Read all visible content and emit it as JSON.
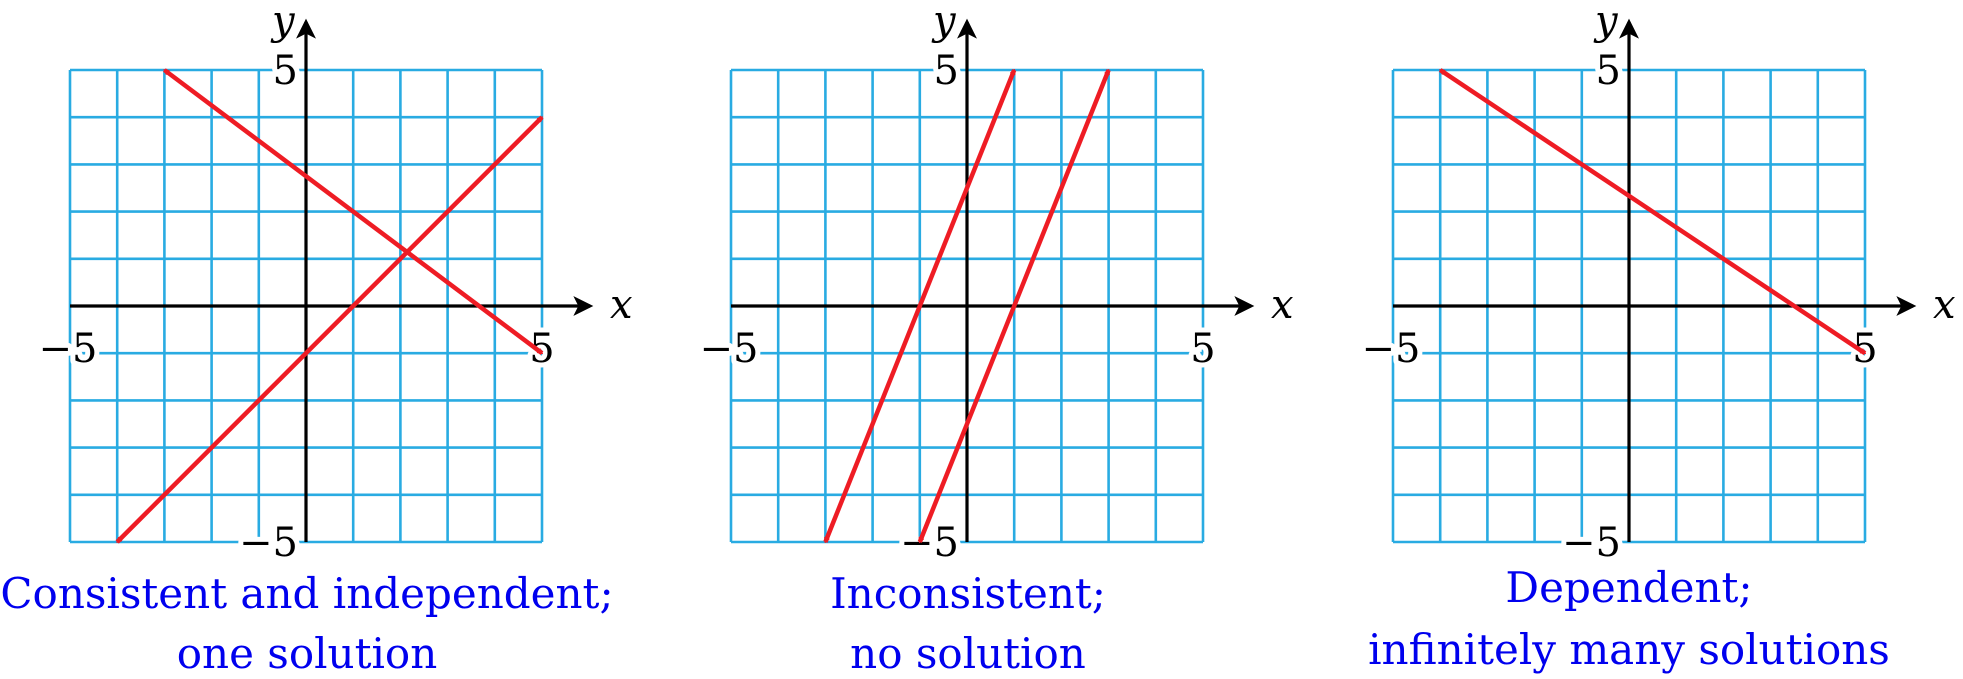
{
  "colors": {
    "grid": "#29abe2",
    "axes": "#000000",
    "lines": "#ee1c24",
    "captions": "#0000ee"
  },
  "chart_data": [
    {
      "type": "line",
      "xlim": [
        -5,
        5
      ],
      "ylim": [
        -5,
        5
      ],
      "xlabel": "x",
      "ylabel": "y",
      "grid": true,
      "tick_labels": {
        "x_min": "−5",
        "x_max": "5",
        "y_min": "−5",
        "y_max": "5"
      },
      "caption": [
        "Consistent and independent;",
        "one solution"
      ],
      "series": [
        {
          "x": [
            -3,
            5
          ],
          "y": [
            5,
            -1
          ]
        },
        {
          "x": [
            -4,
            5
          ],
          "y": [
            -5,
            4
          ]
        }
      ]
    },
    {
      "type": "line",
      "xlim": [
        -5,
        5
      ],
      "ylim": [
        -5,
        5
      ],
      "xlabel": "x",
      "ylabel": "y",
      "grid": true,
      "tick_labels": {
        "x_min": "−5",
        "x_max": "5",
        "y_min": "−5",
        "y_max": "5"
      },
      "caption": [
        "Inconsistent;",
        "no solution"
      ],
      "series": [
        {
          "x": [
            -3,
            1
          ],
          "y": [
            -5,
            5
          ]
        },
        {
          "x": [
            -1,
            3
          ],
          "y": [
            -5,
            5
          ]
        }
      ]
    },
    {
      "type": "line",
      "xlim": [
        -5,
        5
      ],
      "ylim": [
        -5,
        5
      ],
      "xlabel": "x",
      "ylabel": "y",
      "grid": true,
      "tick_labels": {
        "x_min": "−5",
        "x_max": "5",
        "y_min": "−5",
        "y_max": "5"
      },
      "caption": [
        "Dependent;",
        "infinitely many solutions"
      ],
      "series": [
        {
          "x": [
            -4,
            5
          ],
          "y": [
            5,
            -1
          ]
        }
      ]
    }
  ]
}
